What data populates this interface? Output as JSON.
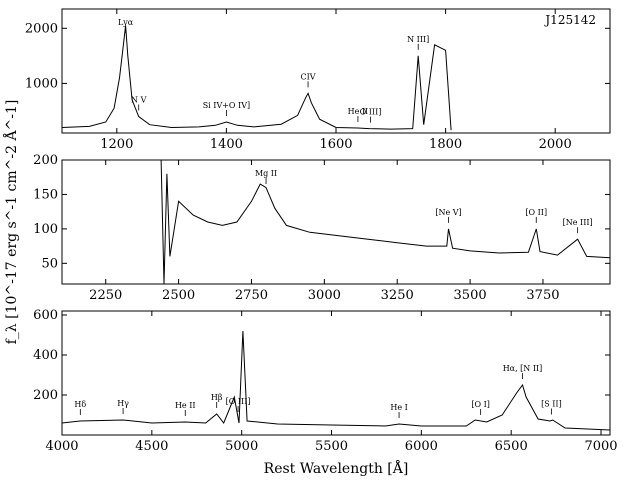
{
  "chart_data": [
    {
      "type": "line",
      "object_label": "J125142",
      "xlim": [
        1100,
        2100
      ],
      "ylim": [
        100,
        2350
      ],
      "xticks": [
        1200,
        1400,
        1600,
        1800,
        2000
      ],
      "yticks": [
        1000,
        2000
      ],
      "x": [
        1100,
        1150,
        1180,
        1195,
        1205,
        1212,
        1216,
        1220,
        1228,
        1240,
        1260,
        1300,
        1350,
        1380,
        1400,
        1420,
        1450,
        1500,
        1530,
        1545,
        1549,
        1555,
        1570,
        1600,
        1640,
        1660,
        1700,
        1740,
        1750,
        1760,
        1780,
        1790,
        1800,
        1810
      ],
      "y": [
        200,
        220,
        300,
        550,
        1100,
        1700,
        2050,
        1500,
        700,
        400,
        250,
        200,
        210,
        240,
        300,
        240,
        210,
        260,
        420,
        750,
        820,
        650,
        350,
        200,
        190,
        180,
        170,
        180,
        1500,
        250,
        1700,
        1650,
        1600,
        150
      ],
      "annotations": [
        {
          "text": "Lyα",
          "x": 1216
        },
        {
          "text": "N V",
          "x": 1240
        },
        {
          "text": "Si IV+O IV]",
          "x": 1400
        },
        {
          "text": "CIV",
          "x": 1549
        },
        {
          "text": "He II",
          "x": 1640
        },
        {
          "text": "O III]",
          "x": 1663
        },
        {
          "text": "N III]",
          "x": 1750
        }
      ]
    },
    {
      "type": "line",
      "xlim": [
        2100,
        3980
      ],
      "ylim": [
        20,
        200
      ],
      "xticks": [
        2250,
        2500,
        2750,
        3000,
        3250,
        3500,
        3750
      ],
      "yticks": [
        50,
        100,
        150,
        200
      ],
      "x": [
        2440,
        2450,
        2460,
        2470,
        2500,
        2550,
        2600,
        2650,
        2700,
        2750,
        2780,
        2800,
        2830,
        2870,
        2950,
        3050,
        3150,
        3250,
        3350,
        3420,
        3426,
        3440,
        3500,
        3600,
        3700,
        3727,
        3740,
        3800,
        3869,
        3900,
        3980
      ],
      "y": [
        200,
        20,
        180,
        60,
        140,
        120,
        110,
        105,
        110,
        140,
        165,
        160,
        130,
        105,
        95,
        90,
        85,
        80,
        75,
        75,
        100,
        72,
        68,
        65,
        66,
        100,
        67,
        62,
        85,
        60,
        58
      ],
      "annotations": [
        {
          "text": "Mg II",
          "x": 2800
        },
        {
          "text": "[Ne V]",
          "x": 3426
        },
        {
          "text": "[O II]",
          "x": 3727
        },
        {
          "text": "[Ne III]",
          "x": 3869
        }
      ]
    },
    {
      "type": "line",
      "xlim": [
        4000,
        7050
      ],
      "ylim": [
        0,
        620
      ],
      "xticks": [
        4000,
        4500,
        5000,
        5500,
        6000,
        6500,
        7000
      ],
      "yticks": [
        200,
        400,
        600
      ],
      "xlabel": "Rest Wavelength [Å]",
      "ylabel": "f_λ [10^-17 erg s^-1 cm^-2 Å^-1]",
      "x": [
        4000,
        4100,
        4340,
        4500,
        4686,
        4800,
        4861,
        4900,
        4959,
        4985,
        5007,
        5030,
        5200,
        5500,
        5800,
        5876,
        6000,
        6250,
        6300,
        6364,
        6450,
        6530,
        6563,
        6583,
        6650,
        6716,
        6731,
        6800,
        7050
      ],
      "y": [
        60,
        70,
        75,
        60,
        65,
        60,
        105,
        60,
        190,
        60,
        520,
        70,
        55,
        50,
        45,
        55,
        45,
        45,
        75,
        65,
        100,
        210,
        250,
        190,
        80,
        70,
        75,
        35,
        25
      ],
      "annotations": [
        {
          "text": "Hδ",
          "x": 4102
        },
        {
          "text": "Hγ",
          "x": 4340
        },
        {
          "text": "He II",
          "x": 4686
        },
        {
          "text": "Hβ",
          "x": 4861
        },
        {
          "text": "[O III]",
          "x": 4980
        },
        {
          "text": "He I",
          "x": 5876
        },
        {
          "text": "[O I]",
          "x": 6330
        },
        {
          "text": "Hα, [N II]",
          "x": 6563
        },
        {
          "text": "[S II]",
          "x": 6724
        }
      ]
    }
  ]
}
